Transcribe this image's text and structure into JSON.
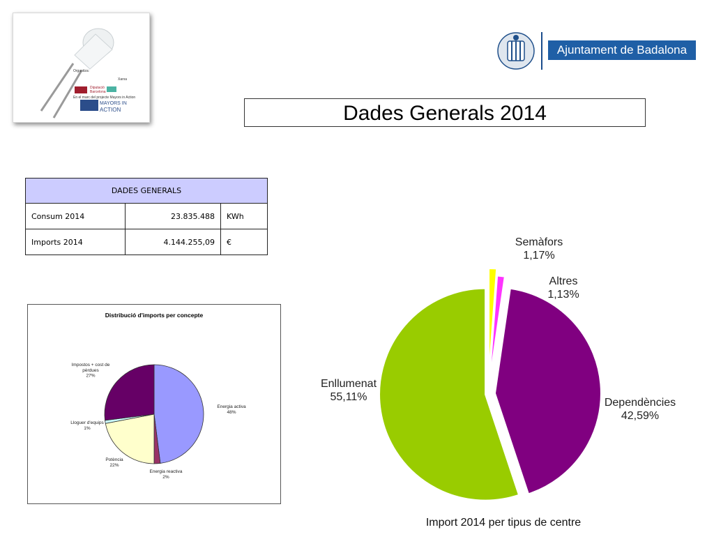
{
  "logo_card": {
    "organitza": "Organitza:",
    "diputacio": "Diputació Barcelona",
    "xarxa": "Xarxa",
    "marc": "En el marc del projecte Mayors in Action",
    "mayors": "MAYORS IN",
    "action": "ACTION"
  },
  "brand": {
    "name": "Ajuntament de Badalona",
    "color": "#1f5fa6"
  },
  "page_title": "Dades Generals 2014",
  "table": {
    "header": "DADES GENERALS",
    "rows": [
      {
        "label": "Consum 2014",
        "value": "23.835.488",
        "unit": "KWh"
      },
      {
        "label": "Imports 2014",
        "value": "4.144.255,09",
        "unit": "€"
      }
    ]
  },
  "chart_data": [
    {
      "type": "pie",
      "title": "Distribució d'imports per concepte",
      "slices": [
        {
          "label": "Energia activa",
          "pct_label": "48%",
          "value": 48,
          "color": "#9999ff"
        },
        {
          "label": "Energia reactiva",
          "pct_label": "2%",
          "value": 2,
          "color": "#993366"
        },
        {
          "label": "Potència",
          "pct_label": "22%",
          "value": 22,
          "color": "#ffffcc"
        },
        {
          "label": "Lloguer d'equips",
          "pct_label": "1%",
          "value": 1,
          "color": "#ccffff"
        },
        {
          "label": "Impostos + cost de pèrdues",
          "pct_label": "27%",
          "value": 27,
          "color": "#660066"
        }
      ]
    },
    {
      "type": "pie",
      "title": "Import 2014 per tipus de centre",
      "slices": [
        {
          "label": "Semàfors",
          "pct_label": "1,17%",
          "value": 1.17,
          "color": "#ffff00"
        },
        {
          "label": "Altres",
          "pct_label": "1,13%",
          "value": 1.13,
          "color": "#ff33ff"
        },
        {
          "label": "Dependències",
          "pct_label": "42,59%",
          "value": 42.59,
          "color": "#800080"
        },
        {
          "label": "Enllumenat",
          "pct_label": "55,11%",
          "value": 55.11,
          "color": "#99cc00"
        }
      ]
    }
  ]
}
